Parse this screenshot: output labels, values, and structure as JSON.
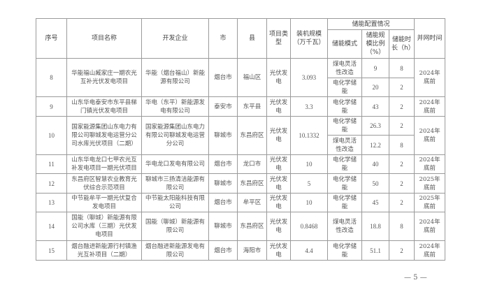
{
  "headers": {
    "no": "序号",
    "name": "项目名称",
    "developer": "开发企业",
    "city": "市",
    "county": "县",
    "type": "项目类型",
    "capacity": "装机规模（万千瓦）",
    "storage": "储能配置情况",
    "mode": "储能模式",
    "ratio": "储能规模比例（%）",
    "duration": "储能时长（h）",
    "grid": "并网时间"
  },
  "rows": [
    {
      "no": "8",
      "name": "华能福山臧家庄一期农光互补光伏发电项目",
      "developer": "华能（烟台福山）新能源有限公司",
      "city": "烟台市",
      "county": "福山区",
      "type": "光伏发电",
      "capacity": "3.093",
      "storage": [
        {
          "mode": "煤电灵活性改造",
          "ratio": "9",
          "duration": "8"
        },
        {
          "mode": "电化学储能",
          "ratio": "20",
          "duration": "2"
        }
      ],
      "grid": "2024年底前"
    },
    {
      "no": "9",
      "name": "山东华电泰安市东平县梯门镇光伏发电项目",
      "developer": "华电（东平）新能源发电有限公司",
      "city": "泰安市",
      "county": "东平县",
      "type": "光伏发电",
      "capacity": "3.3",
      "storage": [
        {
          "mode": "电化学储能",
          "ratio": "43",
          "duration": "2"
        }
      ],
      "grid": "2024年底前"
    },
    {
      "no": "10",
      "name": "国家能源集团山东电力有限公司聊城发电运营分公司水库光伏项目（二期）",
      "developer": "国家能源集团山东电力有限公司聊城发电运营分公司",
      "city": "聊城市",
      "county": "东昌府区",
      "type": "光伏发电",
      "capacity": "10.1332",
      "storage": [
        {
          "mode": "电化学储能",
          "ratio": "26.3",
          "duration": "2"
        },
        {
          "mode": "煤电灵活性改造",
          "ratio": "12.2",
          "duration": "8"
        }
      ],
      "grid": "2024年底前"
    },
    {
      "no": "11",
      "name": "山东华电龙口七甲农光互补发电项目一期光伏项目",
      "developer": "华电龙口发电有限公司",
      "city": "烟台市",
      "county": "龙口市",
      "type": "光伏发电",
      "capacity": "10",
      "storage": [
        {
          "mode": "电化学储能",
          "ratio": "40",
          "duration": "2"
        }
      ],
      "grid": "2024年底前"
    },
    {
      "no": "12",
      "name": "东昌府区智慧农业教育光伏综合示范项目",
      "developer": "聊城市三扬清洁能源有限公司",
      "city": "聊城市",
      "county": "东昌府区",
      "type": "光伏发电",
      "capacity": "5",
      "storage": [
        {
          "mode": "电化学储能",
          "ratio": "50",
          "duration": "2"
        }
      ],
      "grid": "2025年底前"
    },
    {
      "no": "13",
      "name": "中节能牟平一期光伏复合发电项目",
      "developer": "中节能太阳能科技有限公司",
      "city": "烟台市",
      "county": "牟平区",
      "type": "光伏发电",
      "capacity": "10",
      "storage": [
        {
          "mode": "电化学储能",
          "ratio": "45",
          "duration": "2"
        }
      ],
      "grid": "2025年底前"
    },
    {
      "no": "14",
      "name": "国能（聊城）新能源有限公司水库（三期）光伏发电项目",
      "developer": "国能（聊城）新能源有限公司",
      "city": "聊城市",
      "county": "东昌府区",
      "type": "光伏发电",
      "capacity": "0.8468",
      "storage": [
        {
          "mode": "煤电灵活性改造",
          "ratio": "18.8",
          "duration": "8"
        }
      ],
      "grid": "2024年底前"
    },
    {
      "no": "15",
      "name": "烟台融进新能源行村镇渔光互补项目（二期）",
      "developer": "烟台融进新能源发电有限公司",
      "city": "烟台市",
      "county": "海阳市",
      "type": "光伏发电",
      "capacity": "4.4",
      "storage": [
        {
          "mode": "电化学储能",
          "ratio": "51.1",
          "duration": "2"
        }
      ],
      "grid": "2024年底前"
    }
  ],
  "footer": {
    "page": "— 5 —"
  }
}
